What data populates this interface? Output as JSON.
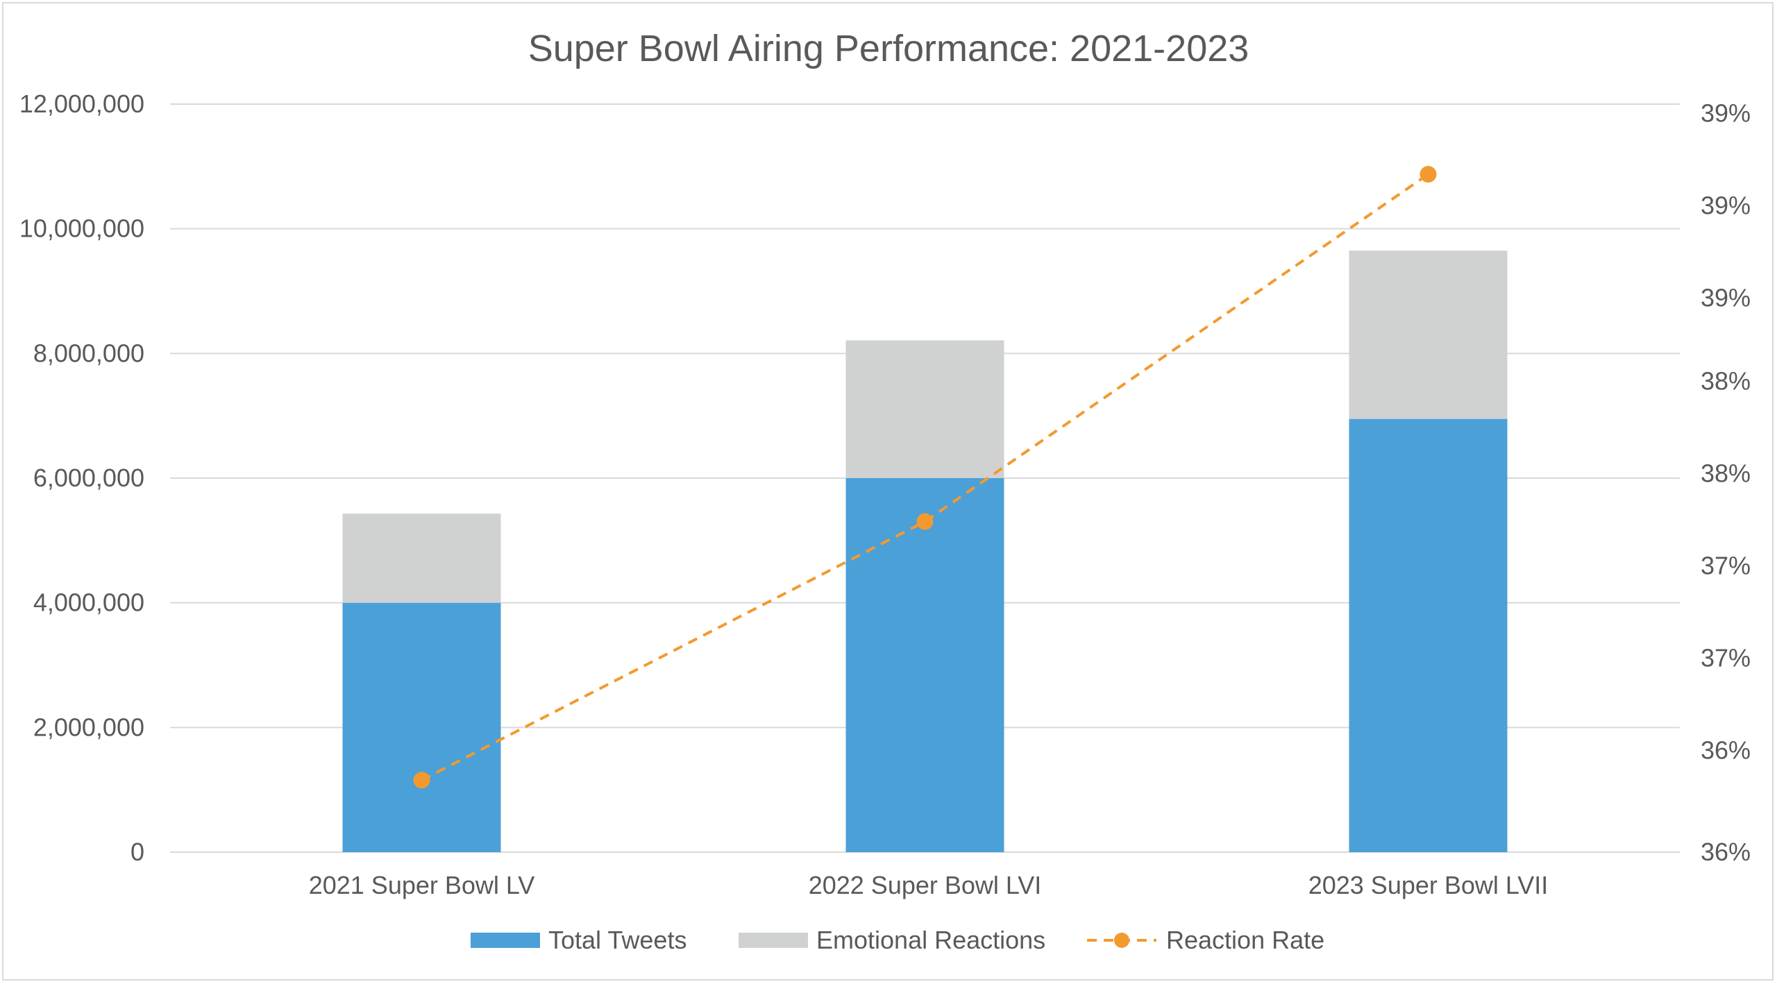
{
  "chart_data": {
    "type": "bar",
    "title": "Super Bowl Airing Performance: 2021-2023",
    "categories": [
      "2021 Super Bowl LV",
      "2022 Super Bowl LVI",
      "2023 Super Bowl LVII"
    ],
    "series": [
      {
        "name": "Total Tweets",
        "kind": "stacked-bar",
        "axis": "left",
        "color": "#4ba0d8",
        "values": [
          4000000,
          6000000,
          6950000
        ]
      },
      {
        "name": "Emotional Reactions",
        "kind": "stacked-bar",
        "axis": "left",
        "color": "#d0d1d1",
        "values": [
          1430000,
          2210000,
          2700000
        ]
      },
      {
        "name": "Reaction Rate",
        "kind": "line",
        "axis": "right",
        "color": "#f29a2e",
        "values": [
          0.3589,
          0.3729,
          0.3917
        ]
      }
    ],
    "left_axis": {
      "min": 0,
      "max": 12000000,
      "ticks": [
        0,
        2000000,
        4000000,
        6000000,
        8000000,
        10000000,
        12000000
      ],
      "tick_labels": [
        "0",
        "2,000,000",
        "4,000,000",
        "6,000,000",
        "8,000,000",
        "10,000,000",
        "12,000,000"
      ]
    },
    "right_axis": {
      "min": 0.355,
      "max": 0.3955,
      "tick_values": [
        0.355,
        0.3605,
        0.3655,
        0.3705,
        0.3755,
        0.3805,
        0.385,
        0.39,
        0.395
      ],
      "tick_labels": [
        "36%",
        "36%",
        "37%",
        "37%",
        "38%",
        "38%",
        "39%",
        "39%",
        "39%"
      ]
    },
    "legend": {
      "position": "bottom"
    },
    "grid": true
  }
}
